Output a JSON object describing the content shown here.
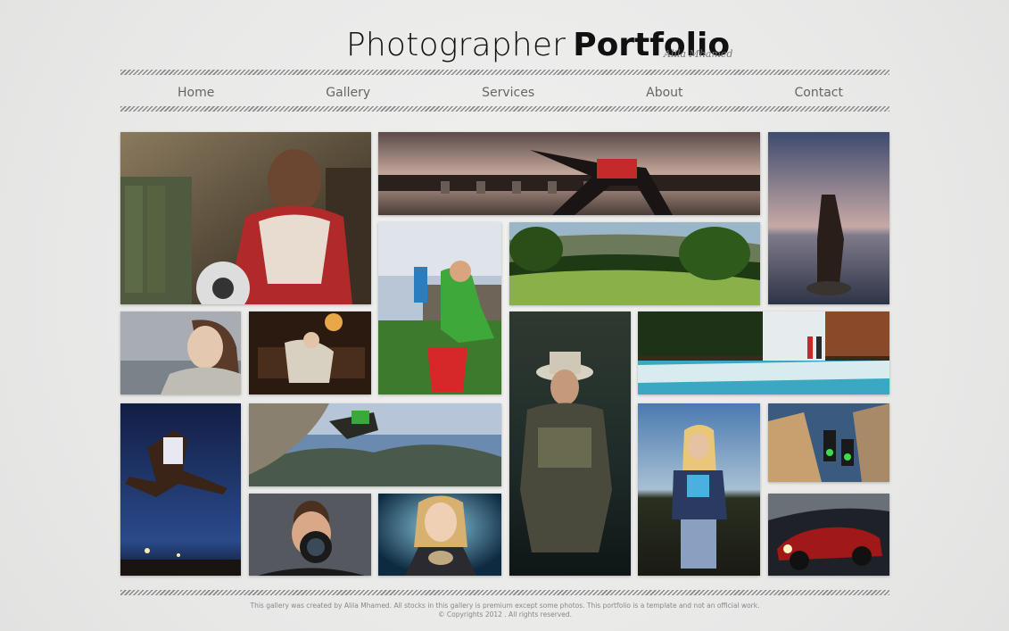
{
  "header": {
    "title_light": "Photographer",
    "title_bold": "Portfolio",
    "signature": "Alila Mhamed"
  },
  "nav": {
    "items": [
      {
        "label": "Home"
      },
      {
        "label": "Gallery"
      },
      {
        "label": "Services"
      },
      {
        "label": "About"
      },
      {
        "label": "Contact"
      }
    ]
  },
  "gallery": {
    "photos": [
      {
        "subject": "soccer-player-woman"
      },
      {
        "subject": "sprinter-at-dam"
      },
      {
        "subject": "woman-at-lake-dusk"
      },
      {
        "subject": "kids-playing-ball"
      },
      {
        "subject": "golf-course"
      },
      {
        "subject": "woman-portrait"
      },
      {
        "subject": "elderly-couple"
      },
      {
        "subject": "fisherman"
      },
      {
        "subject": "waterfall-couple"
      },
      {
        "subject": "high-jumper"
      },
      {
        "subject": "rock-climber"
      },
      {
        "subject": "girl-in-field"
      },
      {
        "subject": "traffic-light-city"
      },
      {
        "subject": "photographer-camera"
      },
      {
        "subject": "girl-with-sand"
      },
      {
        "subject": "red-sports-car"
      }
    ]
  },
  "footer": {
    "line1": "This gallery was created by Alila Mhamed. All stocks in this gallery is premium except some photos. This portfolio is a template and not an official work.",
    "line2": "© Copyrights 2012 . All rights reserved."
  }
}
